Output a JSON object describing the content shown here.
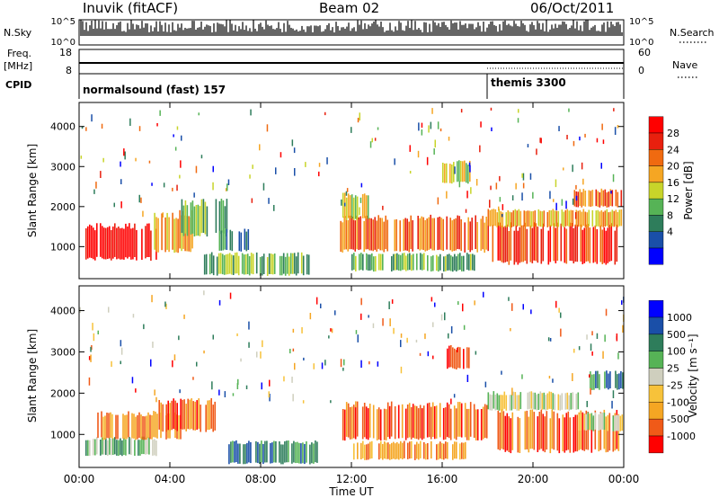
{
  "header": {
    "station": "Inuvik (fitACF)",
    "beam": "Beam 02",
    "date": "06/Oct/2011"
  },
  "noise_panel": {
    "left_label": "N.Sky",
    "right_label": "N.Search",
    "left_ticks": [
      "10^5",
      "10^0"
    ],
    "right_ticks": [
      "10^5",
      "10^0"
    ]
  },
  "freq_panel": {
    "left_label": "Freq.",
    "left_unit": "[MHz]",
    "right_label": "Nave",
    "left_ticks": [
      "18",
      "8"
    ],
    "right_ticks": [
      "60",
      "0"
    ]
  },
  "cpid_panel": {
    "label": "CPID",
    "modes": [
      {
        "name": "normalsound (fast) 157",
        "start_hour": 0
      },
      {
        "name": "themis 3300",
        "start_hour": 18.0
      }
    ]
  },
  "chart_data": [
    {
      "type": "heatmap",
      "name": "power-panel",
      "ylabel": "Slant Range [km]",
      "yticks": [
        "1000",
        "2000",
        "3000",
        "4000"
      ],
      "ylim": [
        200,
        4600
      ],
      "xlim": [
        0,
        24
      ],
      "xticks": [
        "00:00",
        "04:00",
        "08:00",
        "12:00",
        "16:00",
        "20:00",
        "00:00"
      ],
      "colorbar": {
        "label": "Power [dB]",
        "ticks": [
          "28",
          "24",
          "20",
          "16",
          "12",
          "8",
          "4"
        ],
        "colors": [
          "#0000ff",
          "#1a4fa8",
          "#2e7d5b",
          "#56b356",
          "#c8d42a",
          "#f5a623",
          "#f06a10",
          "#e8200e",
          "#ff0000"
        ]
      },
      "regions": [
        {
          "t0": 0.2,
          "t1": 3.4,
          "r0": 700,
          "r1": 1500,
          "level": 8
        },
        {
          "t0": 3.3,
          "t1": 5.0,
          "r0": 900,
          "r1": 1800,
          "level": 5
        },
        {
          "t0": 4.5,
          "t1": 6.5,
          "r0": 1300,
          "r1": 2100,
          "level": 3
        },
        {
          "t0": 5.5,
          "t1": 10.2,
          "r0": 300,
          "r1": 800,
          "level": 3
        },
        {
          "t0": 6.0,
          "t1": 7.5,
          "r0": 900,
          "r1": 1400,
          "level": 2
        },
        {
          "t0": 11.5,
          "t1": 18.0,
          "r0": 900,
          "r1": 1700,
          "level": 6
        },
        {
          "t0": 12.0,
          "t1": 17.5,
          "r0": 400,
          "r1": 800,
          "level": 3
        },
        {
          "t0": 11.6,
          "t1": 13.0,
          "r0": 1700,
          "r1": 2300,
          "level": 4
        },
        {
          "t0": 18.2,
          "t1": 23.8,
          "r0": 600,
          "r1": 1500,
          "level": 7
        },
        {
          "t0": 18.0,
          "t1": 23.9,
          "r0": 1500,
          "r1": 1900,
          "level": 5
        },
        {
          "t0": 21.8,
          "t1": 24.0,
          "r0": 2000,
          "r1": 2400,
          "level": 6
        },
        {
          "t0": 16.0,
          "t1": 17.2,
          "r0": 2600,
          "r1": 3100,
          "level": 4
        }
      ]
    },
    {
      "type": "heatmap",
      "name": "velocity-panel",
      "ylabel": "Slant Range [km]",
      "yticks": [
        "1000",
        "2000",
        "3000",
        "4000"
      ],
      "ylim": [
        200,
        4600
      ],
      "xlim": [
        0,
        24
      ],
      "xlabel": "Time UT",
      "xticks": [
        "00:00",
        "04:00",
        "08:00",
        "12:00",
        "16:00",
        "20:00",
        "00:00"
      ],
      "colorbar": {
        "label": "Velocity [m s⁻¹]",
        "ticks": [
          "1000",
          "500",
          "100",
          "25",
          "-25",
          "-100",
          "-500",
          "-1000"
        ],
        "colors": [
          "#ff0000",
          "#f05a18",
          "#f5a623",
          "#f7c23a",
          "#cfcfbe",
          "#56b356",
          "#2e7d5b",
          "#1a4fa8",
          "#0000ff"
        ]
      },
      "regions": [
        {
          "t0": 0.2,
          "t1": 3.4,
          "r0": 500,
          "r1": 900,
          "level": 5
        },
        {
          "t0": 0.8,
          "t1": 4.5,
          "r0": 900,
          "r1": 1500,
          "level": 2
        },
        {
          "t0": 3.5,
          "t1": 6.0,
          "r0": 1100,
          "r1": 1800,
          "level": 1
        },
        {
          "t0": 6.5,
          "t1": 10.5,
          "r0": 300,
          "r1": 800,
          "level": 6
        },
        {
          "t0": 11.6,
          "t1": 18.0,
          "r0": 900,
          "r1": 1700,
          "level": 1
        },
        {
          "t0": 12.0,
          "t1": 17.0,
          "r0": 400,
          "r1": 800,
          "level": 2
        },
        {
          "t0": 18.2,
          "t1": 23.8,
          "r0": 600,
          "r1": 1500,
          "level": 1
        },
        {
          "t0": 18.0,
          "t1": 22.0,
          "r0": 1600,
          "r1": 2000,
          "level": 4
        },
        {
          "t0": 22.0,
          "t1": 24.0,
          "r0": 1100,
          "r1": 1500,
          "level": 4
        },
        {
          "t0": 22.5,
          "t1": 24.0,
          "r0": 2100,
          "r1": 2500,
          "level": 6
        },
        {
          "t0": 16.2,
          "t1": 17.2,
          "r0": 2600,
          "r1": 3100,
          "level": 1
        }
      ]
    }
  ]
}
